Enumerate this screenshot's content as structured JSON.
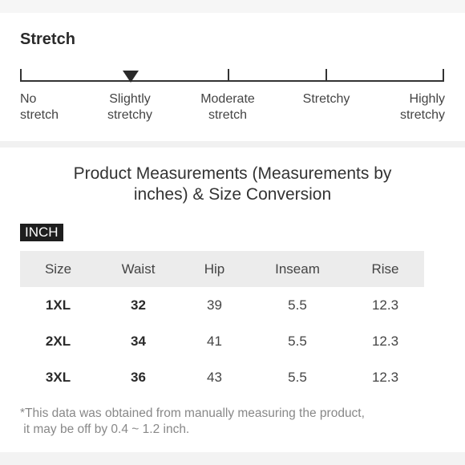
{
  "stretch": {
    "title": "Stretch",
    "levels": [
      {
        "line1": "No",
        "line2": "stretch"
      },
      {
        "line1": "Slightly",
        "line2": "stretchy"
      },
      {
        "line1": "Moderate",
        "line2": "stretch"
      },
      {
        "line1": "Stretchy",
        "line2": ""
      },
      {
        "line1": "Highly",
        "line2": "stretchy"
      }
    ],
    "selected_level": "Slightly stretchy"
  },
  "measurements": {
    "heading_line1": "Product Measurements (Measurements by",
    "heading_line2": "inches) & Size Conversion",
    "unit": "INCH",
    "columns": [
      "Size",
      "Waist",
      "Hip",
      "Inseam",
      "Rise"
    ],
    "rows": [
      {
        "size": "1XL",
        "waist": "32",
        "hip": "39",
        "inseam": "5.5",
        "rise": "12.3"
      },
      {
        "size": "2XL",
        "waist": "34",
        "hip": "41",
        "inseam": "5.5",
        "rise": "12.3"
      },
      {
        "size": "3XL",
        "waist": "36",
        "hip": "43",
        "inseam": "5.5",
        "rise": "12.3"
      }
    ],
    "note_line1": "*This data was obtained from manually measuring the product,",
    "note_line2": " it may be off by 0.4 ~ 1.2 inch."
  }
}
